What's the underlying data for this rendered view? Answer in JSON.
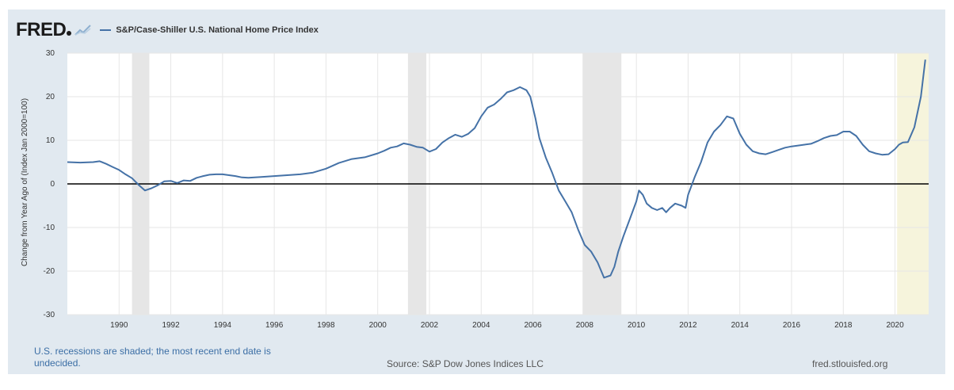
{
  "header": {
    "logo_text": "FRED",
    "series_label": "S&P/Case-Shiller U.S. National Home Price Index"
  },
  "footer": {
    "recession_note": "U.S. recessions are shaded; the most recent end date is undecided.",
    "source": "Source: S&P Dow Jones Indices LLC",
    "url": "fred.stlouisfed.org"
  },
  "colors": {
    "line": "#4572a7",
    "recession": "#e6e6e6",
    "recent": "#f6f4dc",
    "zero_line": "#000000",
    "grid": "#e6e6e6"
  },
  "chart_data": {
    "type": "line",
    "ylabel": "Change from Year Ago of (Index Jan 2000=100)",
    "xlim": [
      1988,
      2021.3
    ],
    "ylim": [
      -30,
      30
    ],
    "x_ticks": [
      1990,
      1992,
      1994,
      1996,
      1998,
      2000,
      2002,
      2004,
      2006,
      2008,
      2010,
      2012,
      2014,
      2016,
      2018,
      2020
    ],
    "y_ticks": [
      30,
      20,
      10,
      0,
      -10,
      -20,
      -30
    ],
    "grid": true,
    "recessions": [
      [
        1990.5,
        1991.17
      ],
      [
        2001.17,
        2001.88
      ],
      [
        2007.92,
        2009.42
      ]
    ],
    "recent_recession": [
      2020.08,
      2021.3
    ],
    "series": [
      {
        "name": "S&P/Case-Shiller U.S. National Home Price Index",
        "x": [
          1988.0,
          1988.5,
          1989.0,
          1989.25,
          1989.5,
          1989.75,
          1990.0,
          1990.25,
          1990.5,
          1990.75,
          1991.0,
          1991.25,
          1991.5,
          1991.75,
          1992.0,
          1992.25,
          1992.5,
          1992.75,
          1993.0,
          1993.25,
          1993.5,
          1993.75,
          1994.0,
          1994.25,
          1994.5,
          1994.75,
          1995.0,
          1995.5,
          1996.0,
          1996.5,
          1997.0,
          1997.5,
          1998.0,
          1998.5,
          1999.0,
          1999.5,
          2000.0,
          2000.25,
          2000.5,
          2000.75,
          2001.0,
          2001.25,
          2001.5,
          2001.75,
          2002.0,
          2002.25,
          2002.5,
          2002.75,
          2003.0,
          2003.25,
          2003.5,
          2003.75,
          2004.0,
          2004.25,
          2004.5,
          2004.75,
          2005.0,
          2005.25,
          2005.5,
          2005.75,
          2005.9,
          2006.1,
          2006.25,
          2006.5,
          2006.75,
          2007.0,
          2007.25,
          2007.5,
          2007.75,
          2008.0,
          2008.25,
          2008.5,
          2008.75,
          2009.0,
          2009.15,
          2009.3,
          2009.5,
          2009.75,
          2010.0,
          2010.1,
          2010.25,
          2010.4,
          2010.6,
          2010.8,
          2011.0,
          2011.15,
          2011.3,
          2011.5,
          2011.75,
          2011.9,
          2012.0,
          2012.25,
          2012.5,
          2012.75,
          2013.0,
          2013.25,
          2013.5,
          2013.75,
          2014.0,
          2014.25,
          2014.5,
          2014.75,
          2015.0,
          2015.25,
          2015.5,
          2015.75,
          2016.0,
          2016.25,
          2016.5,
          2016.75,
          2017.0,
          2017.25,
          2017.5,
          2017.75,
          2018.0,
          2018.25,
          2018.5,
          2018.75,
          2019.0,
          2019.25,
          2019.5,
          2019.75,
          2020.0,
          2020.15,
          2020.3,
          2020.5,
          2020.75,
          2021.0,
          2021.17
        ],
        "values": [
          5.0,
          4.9,
          5.0,
          5.2,
          4.6,
          3.9,
          3.2,
          2.2,
          1.3,
          -0.2,
          -1.5,
          -1.0,
          -0.3,
          0.6,
          0.7,
          0.2,
          0.8,
          0.7,
          1.4,
          1.8,
          2.1,
          2.2,
          2.2,
          2.0,
          1.8,
          1.5,
          1.4,
          1.6,
          1.8,
          2.0,
          2.2,
          2.6,
          3.5,
          4.8,
          5.7,
          6.1,
          7.0,
          7.6,
          8.3,
          8.6,
          9.3,
          9.0,
          8.5,
          8.3,
          7.4,
          8.0,
          9.5,
          10.5,
          11.3,
          10.8,
          11.5,
          12.8,
          15.5,
          17.5,
          18.2,
          19.5,
          21.0,
          21.5,
          22.2,
          21.5,
          20.0,
          15.0,
          10.5,
          6.0,
          2.5,
          -1.5,
          -4.0,
          -6.5,
          -10.5,
          -14.0,
          -15.5,
          -18.0,
          -21.5,
          -21.0,
          -19.0,
          -15.5,
          -12.0,
          -8.0,
          -4.0,
          -1.5,
          -2.5,
          -4.5,
          -5.5,
          -6.0,
          -5.5,
          -6.5,
          -5.5,
          -4.5,
          -5.0,
          -5.5,
          -2.5,
          1.5,
          5.0,
          9.5,
          12.0,
          13.5,
          15.5,
          15.0,
          11.5,
          9.0,
          7.5,
          7.0,
          6.8,
          7.3,
          7.8,
          8.3,
          8.6,
          8.8,
          9.0,
          9.2,
          9.8,
          10.5,
          11.0,
          11.2,
          12.0,
          12.0,
          11.0,
          9.0,
          7.5,
          7.0,
          6.7,
          6.8,
          8.0,
          9.0,
          9.5,
          9.6,
          13.0,
          20.0,
          28.5
        ]
      }
    ]
  }
}
